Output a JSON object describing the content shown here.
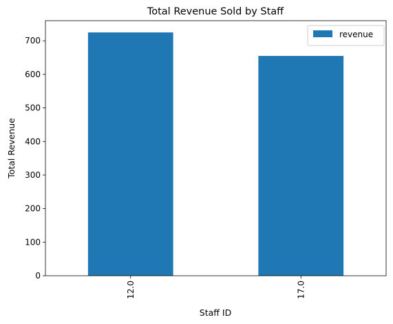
{
  "chart_data": {
    "type": "bar",
    "title": "Total Revenue Sold by Staff",
    "xlabel": "Staff ID",
    "ylabel": "Total Revenue",
    "categories": [
      "12.0",
      "17.0"
    ],
    "series": [
      {
        "name": "revenue",
        "values": [
          725,
          655
        ],
        "color": "#1f77b4"
      }
    ],
    "ylim": [
      0,
      760
    ],
    "yticks": [
      0,
      100,
      200,
      300,
      400,
      500,
      600,
      700
    ],
    "grid": false,
    "legend_position": "top-right",
    "xtick_rotation": "vertical"
  }
}
